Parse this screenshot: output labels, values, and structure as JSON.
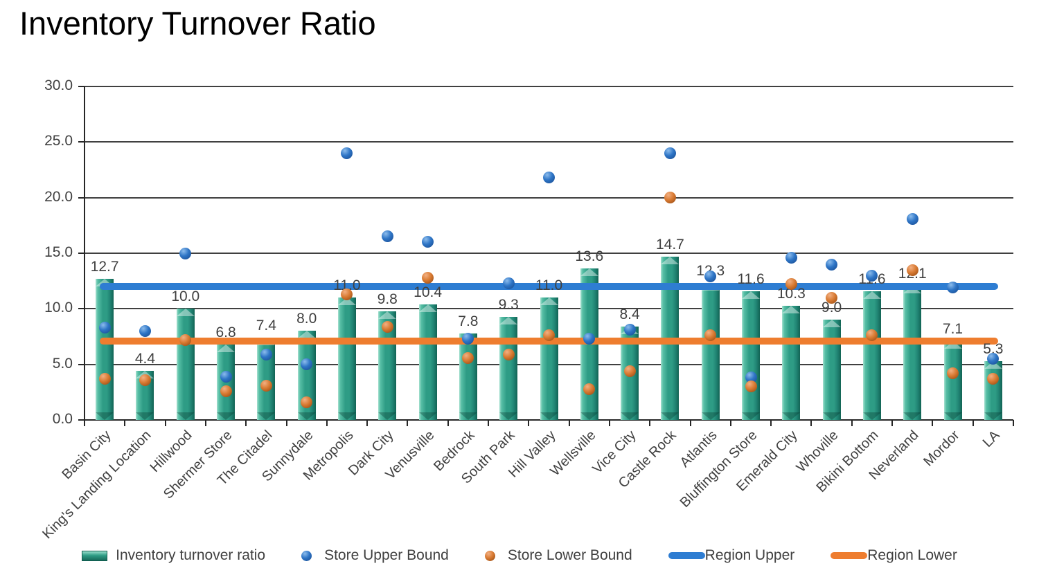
{
  "title": "Inventory Turnover Ratio",
  "chart_data": {
    "type": "bar",
    "title": "Inventory Turnover Ratio",
    "categories": [
      "Basin City",
      "King's Landing Location",
      "Hillwood",
      "Shermer Store",
      "The Citadel",
      "Sunnydale",
      "Metropolis",
      "Dark City",
      "Venusville",
      "Bedrock",
      "South Park",
      "Hill Valley",
      "Wellsville",
      "Vice City",
      "Castle Rock",
      "Atlantis",
      "Bluffington Store",
      "Emerald City",
      "Whoville",
      "Bikini Bottom",
      "Neverland",
      "Mordor",
      "LA"
    ],
    "series": [
      {
        "name": "Inventory turnover ratio",
        "type": "bar",
        "values": [
          12.7,
          4.4,
          10.0,
          6.8,
          7.4,
          8.0,
          11.0,
          9.8,
          10.4,
          7.8,
          9.3,
          11.0,
          13.6,
          8.4,
          14.7,
          12.3,
          11.6,
          10.3,
          9.0,
          11.6,
          12.1,
          7.1,
          5.3
        ]
      },
      {
        "name": "Store Upper Bound",
        "type": "scatter",
        "values": [
          8.3,
          8.0,
          15.0,
          3.9,
          5.9,
          5.0,
          24.0,
          16.5,
          16.0,
          7.3,
          12.3,
          21.8,
          7.3,
          8.1,
          24.0,
          12.9,
          3.8,
          14.6,
          14.0,
          13.0,
          18.1,
          11.9,
          5.5
        ]
      },
      {
        "name": "Store Lower Bound",
        "type": "scatter",
        "values": [
          3.7,
          3.6,
          7.2,
          2.6,
          3.1,
          1.6,
          11.3,
          8.4,
          12.8,
          5.6,
          5.9,
          7.6,
          2.8,
          4.4,
          20.0,
          7.6,
          3.0,
          12.2,
          11.0,
          7.6,
          13.5,
          4.2,
          3.7
        ]
      },
      {
        "name": "Region Upper",
        "type": "line",
        "value": 12.0
      },
      {
        "name": "Region Lower",
        "type": "line",
        "value": 7.1
      }
    ],
    "bar_labels": [
      "12.7",
      "4.4",
      "10.0",
      "6.8",
      "7.4",
      "8.0",
      "11.0",
      "9.8",
      "10.4",
      "7.8",
      "9.3",
      "11.0",
      "13.6",
      "8.4",
      "14.7",
      "12.3",
      "11.6",
      "10.3",
      "9.0",
      "11.6",
      "12.1",
      "7.1",
      "5.3"
    ],
    "ylim": [
      0,
      30
    ],
    "y_tick_labels": [
      "0.0",
      "5.0",
      "10.0",
      "15.0",
      "20.0",
      "25.0",
      "30.0"
    ],
    "y_tick_values": [
      0,
      5,
      10,
      15,
      20,
      25,
      30
    ],
    "grid": true,
    "legend_position": "bottom"
  },
  "legend": {
    "items": [
      {
        "label": "Inventory turnover ratio",
        "swatch": "bar"
      },
      {
        "label": "Store Upper Bound",
        "swatch": "blue-dot"
      },
      {
        "label": "Store Lower Bound",
        "swatch": "orange-dot"
      },
      {
        "label": "Region Upper",
        "swatch": "blue-line"
      },
      {
        "label": "Region Lower",
        "swatch": "orange-line"
      }
    ]
  },
  "colors": {
    "bar_main": "#2E9C85",
    "bar_highlight": "#9ADFCC",
    "bar_shadow": "#126354",
    "upper_dot": "#2E75C6",
    "lower_dot": "#D97B33",
    "region_upper_line": "#2E7DD2",
    "region_lower_line": "#EE7D2F",
    "grid": "#404040",
    "axis_text": "#404040",
    "title_text": "#000000"
  }
}
